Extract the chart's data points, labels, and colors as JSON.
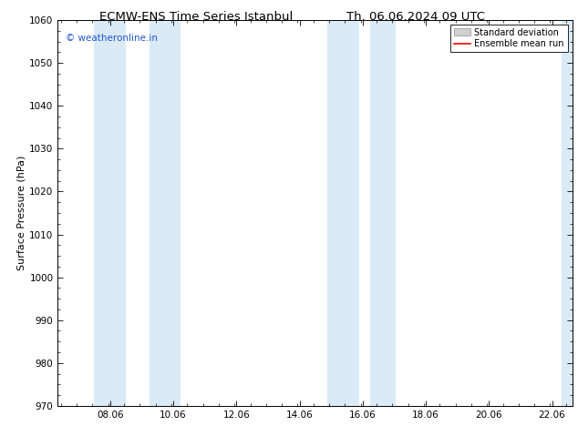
{
  "title_left": "ECMW-ENS Time Series Istanbul",
  "title_right": "Th. 06.06.2024 09 UTC",
  "ylabel": "Surface Pressure (hPa)",
  "ylim": [
    970,
    1060
  ],
  "yticks": [
    970,
    980,
    990,
    1000,
    1010,
    1020,
    1030,
    1040,
    1050,
    1060
  ],
  "xlim_start": 6.4,
  "xlim_end": 22.7,
  "xticks": [
    8.06,
    10.06,
    12.06,
    14.06,
    16.06,
    18.06,
    20.06,
    22.06
  ],
  "xtick_labels": [
    "08.06",
    "10.06",
    "12.06",
    "14.06",
    "16.06",
    "18.06",
    "20.06",
    "22.06"
  ],
  "shaded_bands": [
    {
      "x_start": 7.55,
      "x_end": 8.55
    },
    {
      "x_start": 9.3,
      "x_end": 10.3
    },
    {
      "x_start": 14.95,
      "x_end": 15.95
    },
    {
      "x_start": 16.3,
      "x_end": 17.1
    },
    {
      "x_start": 22.35,
      "x_end": 22.7
    }
  ],
  "shaded_color": "#daeaf7",
  "background_color": "#ffffff",
  "watermark_text": "© weatheronline.in",
  "watermark_color": "#2255cc",
  "legend_std_color": "#d0d0d0",
  "legend_std_edge": "#a0a0a0",
  "legend_mean_color": "#ff0000",
  "title_fontsize": 9.5,
  "label_fontsize": 8,
  "tick_fontsize": 7.5,
  "watermark_fontsize": 7.5
}
